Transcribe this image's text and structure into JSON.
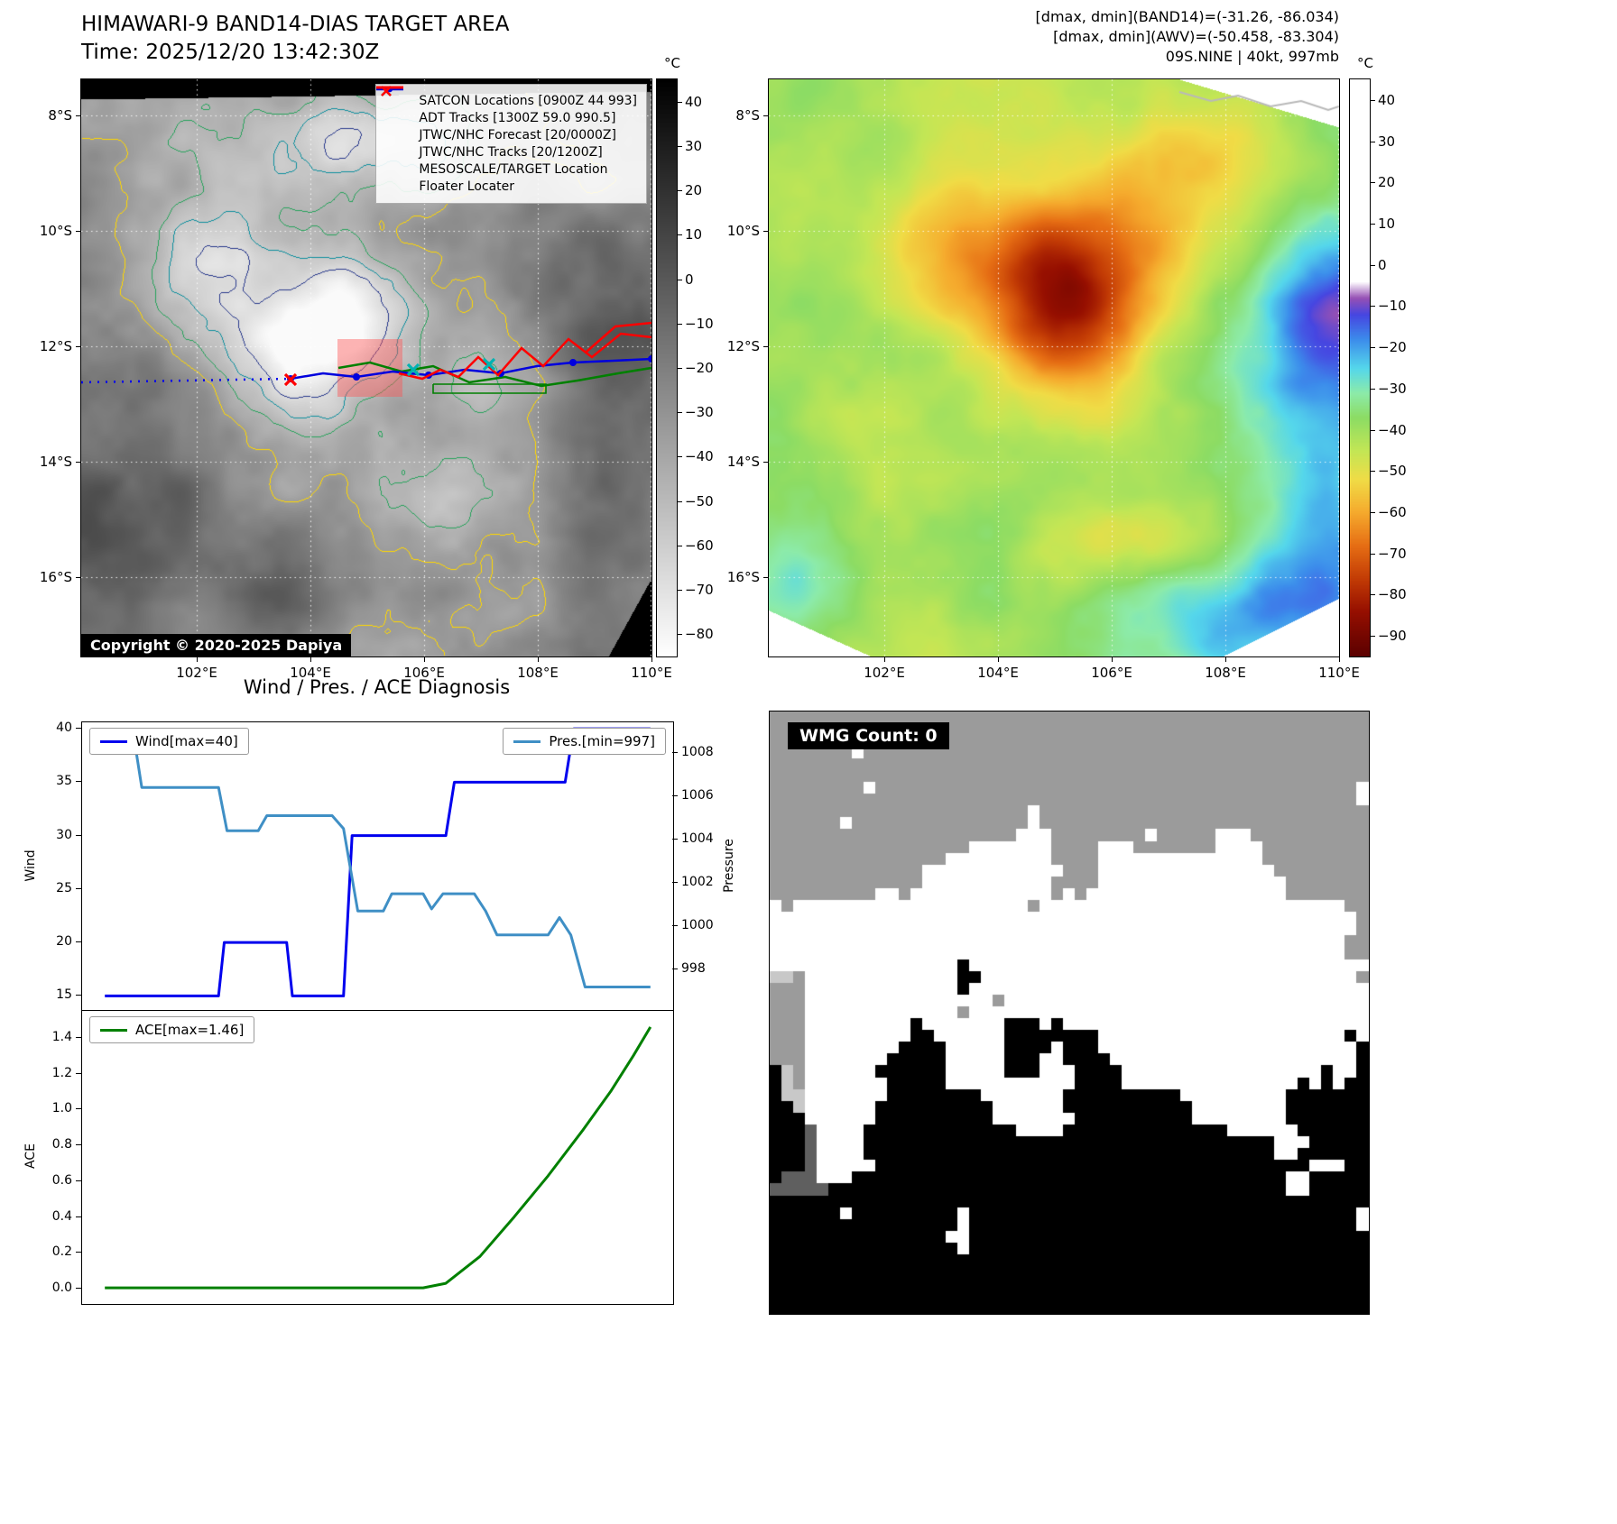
{
  "band14": {
    "title": "HIMAWARI-9 BAND14-DIAS TARGET AREA",
    "time_line": "Time: 2025/12/20 13:42:30Z",
    "copyright": "Copyright © 2020-2025 Dapiya",
    "legend": [
      {
        "label": "SATCON Locations [0900Z 44 993]",
        "marker": "x",
        "color": "#00b2b2"
      },
      {
        "label": "ADT Tracks [1300Z 59.0 990.5]",
        "marker": "line",
        "color": "#008000"
      },
      {
        "label": "JTWC/NHC Forecast [20/0000Z]",
        "marker": "dotted",
        "color": "#0000ee"
      },
      {
        "label": "JTWC/NHC Tracks [20/1200Z]",
        "marker": "line-dot",
        "color": "#0000dd"
      },
      {
        "label": "MESOSCALE/TARGET Location",
        "marker": "x",
        "color": "#ff0000"
      },
      {
        "label": "Floater Locater",
        "marker": "line",
        "color": "#ff0000"
      }
    ],
    "contour_colors": [
      "#ffd700",
      "#28a35c",
      "#0e8f9e",
      "#2a3a8c"
    ],
    "colorbar": {
      "unit": "°C",
      "ticks": [
        40,
        30,
        20,
        10,
        0,
        -10,
        -20,
        -30,
        -40,
        -50,
        -60,
        -70,
        -80
      ],
      "vmax": 45,
      "vmin": -85
    }
  },
  "awv": {
    "annotation_line1": "[dmax, dmin](BAND14)=(-31.26, -86.034)",
    "annotation_line2": "[dmax, dmin](AWV)=(-50.458, -83.304)",
    "annotation_line3": "09S.NINE | 40kt, 997mb",
    "colorbar": {
      "unit": "°C",
      "ticks": [
        40,
        30,
        20,
        10,
        0,
        -10,
        -20,
        -30,
        -40,
        -50,
        -60,
        -70,
        -80,
        -90
      ],
      "vmax": 45,
      "vmin": -95
    }
  },
  "geo": {
    "lat_ticks": [
      "8°S",
      "10°S",
      "12°S",
      "14°S",
      "16°S"
    ],
    "lon_ticks": [
      "102°E",
      "104°E",
      "106°E",
      "108°E",
      "110°E"
    ]
  },
  "diagnosis": {
    "title": "Wind / Pres. / ACE Diagnosis"
  },
  "wmg": {
    "label": "WMG Count: 0"
  },
  "chart_data": [
    {
      "type": "line",
      "title": "Wind / Pres. / ACE Diagnosis",
      "x_range": [
        0,
        104
      ],
      "series": [
        {
          "name": "Wind[max=40]",
          "axis": "left",
          "color": "#0000ee",
          "points": [
            [
              4,
              15
            ],
            [
              24,
              15
            ],
            [
              25,
              20
            ],
            [
              36,
              20
            ],
            [
              37,
              15
            ],
            [
              46,
              15
            ],
            [
              47.5,
              30
            ],
            [
              64,
              30
            ],
            [
              65.5,
              35
            ],
            [
              85,
              35
            ],
            [
              86.5,
              40
            ],
            [
              100,
              40
            ]
          ]
        },
        {
          "name": "Pres.[min=997]",
          "axis": "right",
          "color": "#3f8fc5",
          "points": [
            [
              4,
              1008.9
            ],
            [
              9,
              1008.9
            ],
            [
              10.5,
              1006.4
            ],
            [
              24,
              1006.4
            ],
            [
              25.5,
              1004.4
            ],
            [
              31,
              1004.4
            ],
            [
              32.5,
              1005.1
            ],
            [
              44,
              1005.1
            ],
            [
              46,
              1004.5
            ],
            [
              48.5,
              1000.7
            ],
            [
              53,
              1000.7
            ],
            [
              54.5,
              1001.5
            ],
            [
              60,
              1001.5
            ],
            [
              61.5,
              1000.8
            ],
            [
              63.5,
              1001.5
            ],
            [
              69,
              1001.5
            ],
            [
              71,
              1000.7
            ],
            [
              73,
              999.6
            ],
            [
              82,
              999.6
            ],
            [
              84,
              1000.4
            ],
            [
              86,
              999.6
            ],
            [
              88.5,
              997.2
            ],
            [
              100,
              997.2
            ]
          ]
        }
      ],
      "left_axis": {
        "label": "Wind",
        "ticks": [
          15,
          20,
          25,
          30,
          35,
          40
        ],
        "range": [
          13.6,
          40.6
        ]
      },
      "right_axis": {
        "label": "Pressure",
        "ticks": [
          998,
          1000,
          1002,
          1004,
          1006,
          1008
        ],
        "range": [
          996.1,
          1009.4
        ]
      },
      "legend_position": {
        "wind": "upper-left",
        "pressure": "upper-right"
      }
    },
    {
      "type": "line",
      "x_range": [
        0,
        104
      ],
      "series": [
        {
          "name": "ACE[max=1.46]",
          "axis": "left",
          "color": "#008000",
          "points": [
            [
              4,
              0.005
            ],
            [
              60,
              0.005
            ],
            [
              64,
              0.03
            ],
            [
              70,
              0.18
            ],
            [
              76,
              0.4
            ],
            [
              82,
              0.63
            ],
            [
              88,
              0.88
            ],
            [
              93,
              1.1
            ],
            [
              97,
              1.3
            ],
            [
              100,
              1.46
            ]
          ]
        }
      ],
      "left_axis": {
        "label": "ACE",
        "ticks": [
          0.0,
          0.2,
          0.4,
          0.6,
          0.8,
          1.0,
          1.2,
          1.4
        ],
        "range": [
          -0.085,
          1.55
        ]
      },
      "legend_position": {
        "ace": "upper-left"
      }
    }
  ]
}
